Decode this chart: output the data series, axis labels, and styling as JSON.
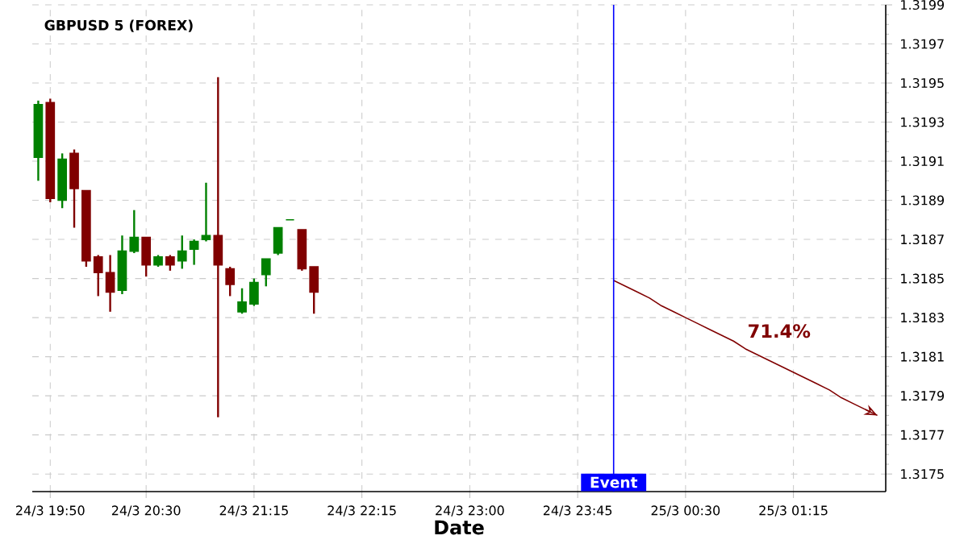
{
  "chart_data": {
    "type": "candlestick",
    "title": "GBPUSD 5 (FOREX)",
    "xlabel": "Date",
    "categories": [
      null,
      "24/3 19:50",
      null,
      null,
      null,
      null,
      null,
      null,
      null,
      "24/3 20:30",
      null,
      null,
      null,
      null,
      null,
      null,
      null,
      null,
      "24/3 21:15",
      null,
      null,
      null,
      null,
      null,
      null,
      null,
      null,
      "24/3 22:15",
      null,
      null,
      null,
      null,
      null,
      null,
      null,
      null,
      "24/3 23:00",
      null,
      null,
      null,
      null,
      null,
      null,
      null,
      null,
      "24/3 23:45",
      null,
      null,
      null,
      null,
      null,
      null,
      null,
      null,
      "25/3 00:30",
      null,
      null,
      null,
      null,
      null,
      null,
      null,
      null,
      "25/3 01:15",
      null,
      null,
      null,
      null,
      null,
      null,
      null
    ],
    "ohlc": [
      [
        1.31912,
        1.31941,
        1.319,
        1.31939
      ],
      [
        1.3194,
        1.31942,
        1.31889,
        1.31891
      ],
      [
        1.3189,
        1.31914,
        1.31886,
        1.31911
      ],
      [
        1.31914,
        1.31916,
        1.31876,
        1.31896
      ],
      [
        1.31895,
        1.31895,
        1.31856,
        1.31859
      ],
      [
        1.31861,
        1.31862,
        1.31841,
        1.31853
      ],
      [
        1.31853,
        1.31862,
        1.31833,
        1.31843
      ],
      [
        1.31844,
        1.31872,
        1.31842,
        1.31864
      ],
      [
        1.31864,
        1.31885,
        1.31863,
        1.31871
      ],
      [
        1.31871,
        1.31871,
        1.31851,
        1.31857
      ],
      [
        1.31857,
        1.31862,
        1.31856,
        1.31861
      ],
      [
        1.31861,
        1.31862,
        1.31854,
        1.31857
      ],
      [
        1.31859,
        1.31872,
        1.31855,
        1.31864
      ],
      [
        1.31865,
        1.3187,
        1.31857,
        1.31869
      ],
      [
        1.3187,
        1.31899,
        1.31869,
        1.31872
      ],
      [
        1.31872,
        1.31953,
        1.31779,
        1.31857
      ],
      [
        1.31855,
        1.31856,
        1.31841,
        1.31847
      ],
      [
        1.31833,
        1.31845,
        1.31832,
        1.31838
      ],
      [
        1.31837,
        1.3185,
        1.31836,
        1.31848
      ],
      [
        1.31852,
        1.3186,
        1.31846,
        1.3186
      ],
      [
        1.31863,
        1.31876,
        1.31862,
        1.31876
      ],
      [
        1.3188,
        1.3188,
        1.3188,
        1.3188
      ],
      [
        1.31875,
        1.31875,
        1.31854,
        1.31855
      ],
      [
        1.31856,
        1.31856,
        1.31832,
        1.31843
      ],
      null,
      null,
      null,
      null,
      null,
      null,
      null,
      null,
      null,
      null,
      null,
      null,
      null,
      null,
      null,
      null,
      null,
      null,
      null,
      null,
      null,
      null,
      null,
      null,
      null,
      null,
      null,
      null,
      null,
      null,
      null,
      null,
      null,
      null,
      null,
      null,
      null,
      null,
      null,
      null,
      null,
      null,
      null,
      null,
      null,
      null,
      null
    ],
    "colors": [
      "#008000",
      "#800000",
      "#008000",
      "#800000",
      "#800000",
      "#800000",
      "#800000",
      "#008000",
      "#008000",
      "#800000",
      "#008000",
      "#800000",
      "#008000",
      "#008000",
      "#008000",
      "#800000",
      "#800000",
      "#008000",
      "#008000",
      "#008000",
      "#008000",
      "#008000",
      "#800000",
      "#800000",
      null,
      null,
      null,
      null,
      null,
      null,
      null,
      null,
      null,
      null,
      null,
      null,
      null,
      null,
      null,
      null,
      null,
      null,
      null,
      null,
      null,
      null,
      null,
      null,
      null,
      null,
      null,
      null,
      null,
      null,
      null,
      null,
      null,
      null,
      null,
      null,
      null,
      null,
      null,
      null,
      null,
      null,
      null,
      null,
      null,
      null,
      null
    ],
    "series": [
      {
        "type": "line",
        "color": "#800000",
        "values": [
          null,
          null,
          null,
          null,
          null,
          null,
          null,
          null,
          null,
          null,
          null,
          null,
          null,
          null,
          null,
          null,
          null,
          null,
          null,
          null,
          null,
          null,
          null,
          null,
          null,
          null,
          null,
          null,
          null,
          null,
          null,
          null,
          null,
          null,
          null,
          null,
          null,
          null,
          null,
          null,
          null,
          null,
          null,
          null,
          null,
          null,
          null,
          null,
          1.31849,
          1.31846,
          1.31843,
          1.3184,
          1.31836,
          1.31833,
          1.3183,
          1.31827,
          1.31824,
          1.31821,
          1.31818,
          1.31814,
          1.31811,
          1.31808,
          1.31805,
          1.31802,
          1.31799,
          1.31796,
          1.31793,
          1.31789,
          1.31786,
          1.31783,
          1.3178
        ]
      }
    ],
    "annotations": [
      "71.4%"
    ],
    "ref_lines": [
      {
        "axis": "x",
        "label": "Event",
        "color": "#0000ff"
      }
    ],
    "ylim": [
      1.31741,
      1.3199
    ],
    "yticks": [
      1.3175,
      1.3177,
      1.3179,
      1.3181,
      1.3183,
      1.3185,
      1.3187,
      1.3189,
      1.3191,
      1.3193,
      1.3195,
      1.3197,
      1.3199
    ],
    "grid": true
  }
}
